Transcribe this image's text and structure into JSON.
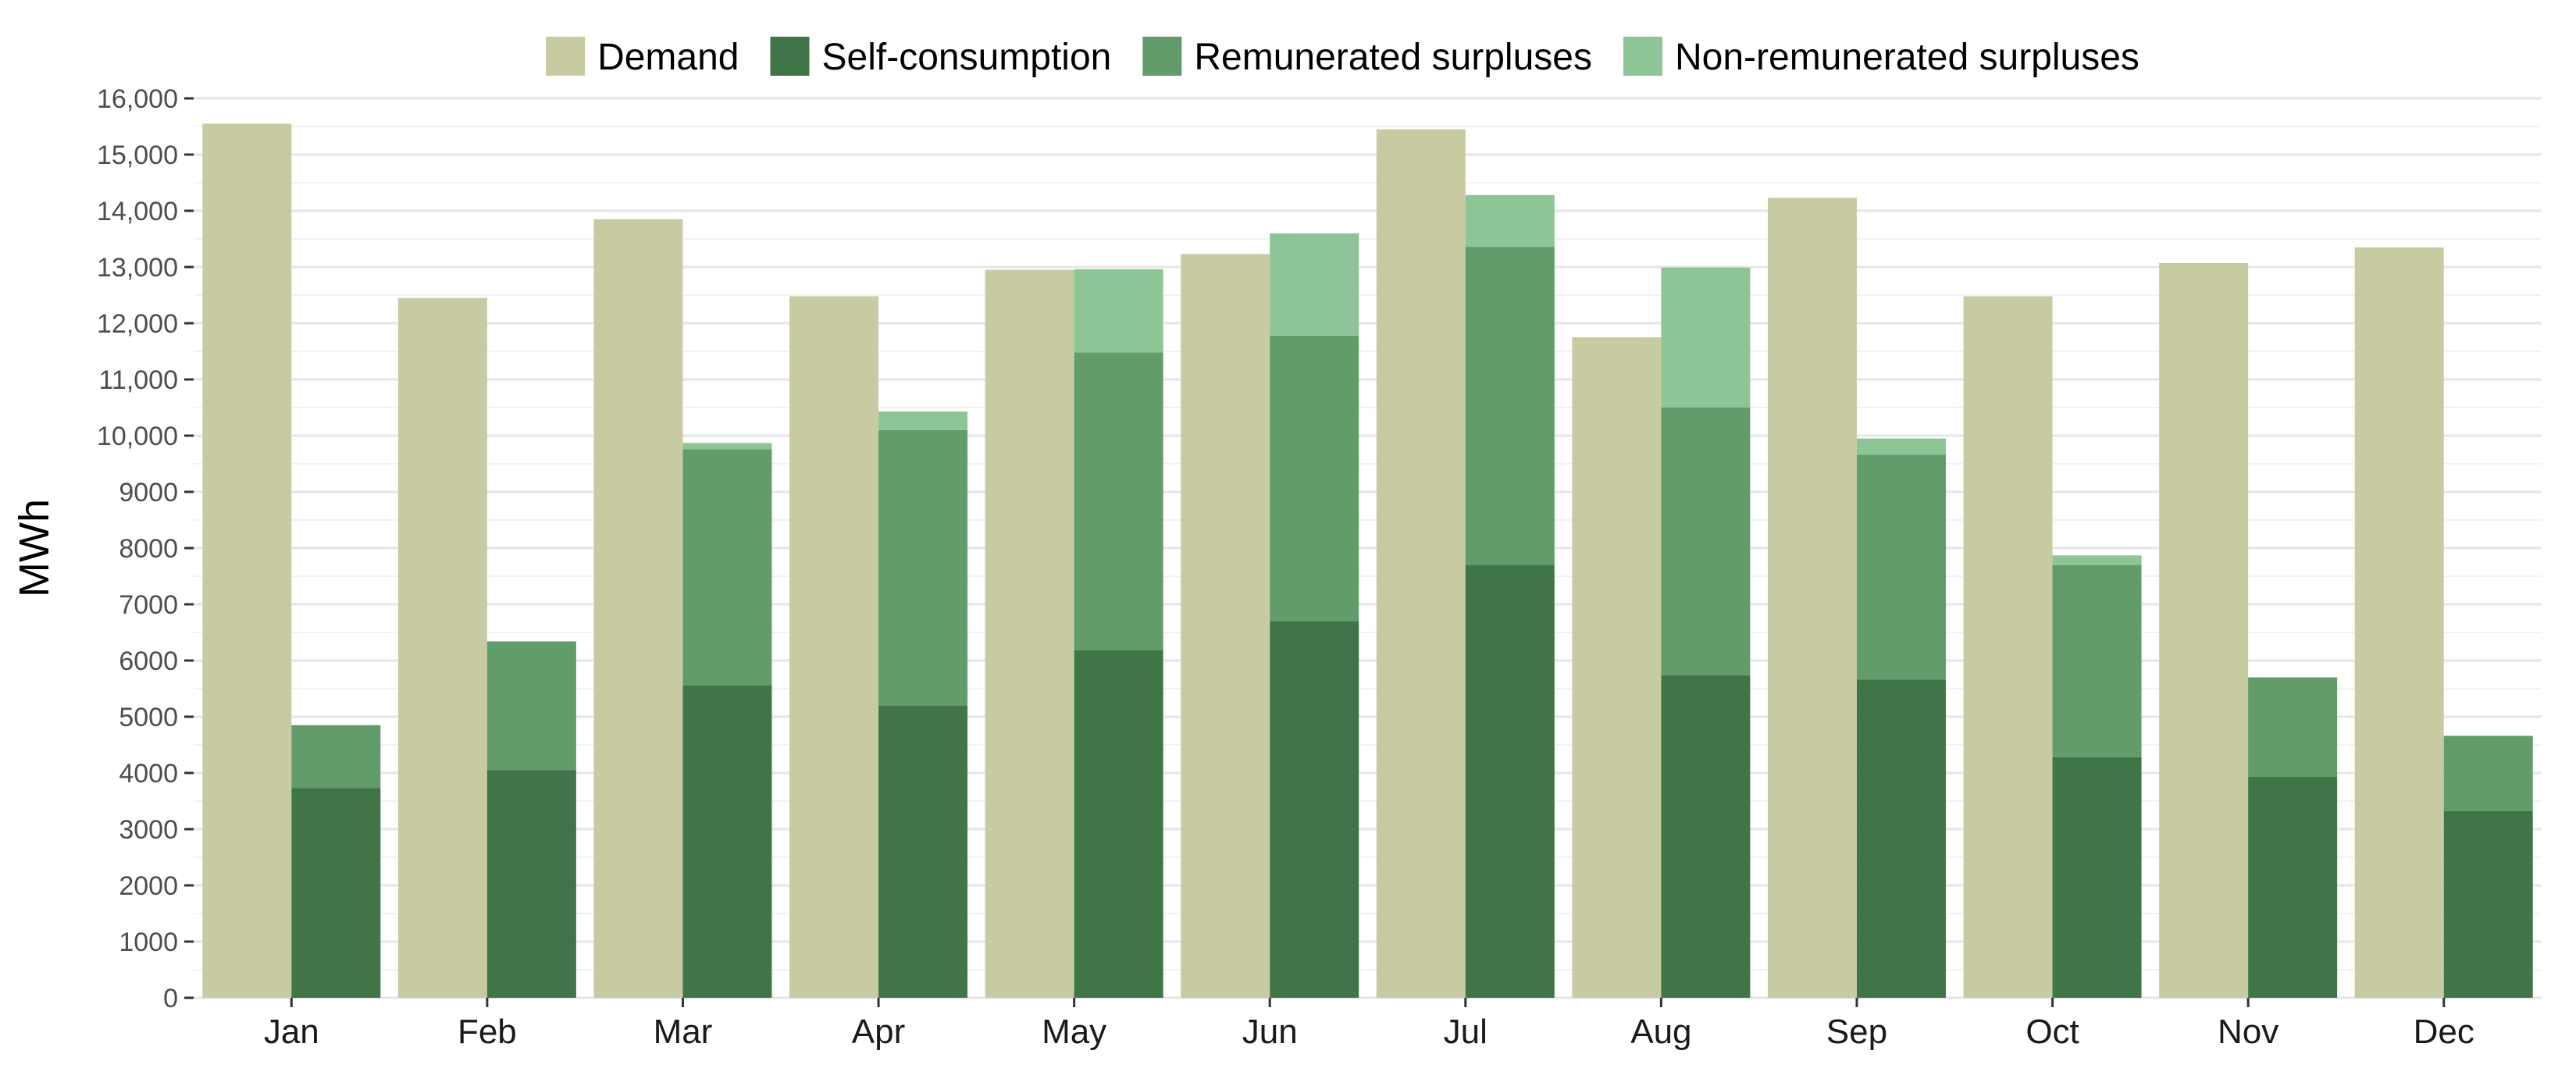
{
  "chart_data": {
    "type": "bar",
    "title": "",
    "xlabel": "",
    "ylabel": "MWh",
    "ylim": [
      0,
      16000
    ],
    "grid": true,
    "legend_position": "top",
    "y_ticks": [
      0,
      1000,
      2000,
      3000,
      4000,
      5000,
      6000,
      7000,
      8000,
      9000,
      10000,
      11000,
      12000,
      13000,
      14000,
      15000,
      16000
    ],
    "y_tick_labels": [
      "0",
      "1000",
      "2000",
      "3000",
      "4000",
      "5000",
      "6000",
      "7000",
      "8000",
      "9000",
      "10,000",
      "11,000",
      "12,000",
      "13,000",
      "14,000",
      "15,000",
      "16,000"
    ],
    "categories": [
      "Jan",
      "Feb",
      "Mar",
      "Apr",
      "May",
      "Jun",
      "Jul",
      "Aug",
      "Sep",
      "Oct",
      "Nov",
      "Dec"
    ],
    "series": [
      {
        "name": "Demand",
        "color": "#c8cba2",
        "stack": "demand",
        "values": [
          15550,
          12450,
          13850,
          12480,
          12950,
          13230,
          15450,
          11750,
          14230,
          12480,
          13070,
          13350
        ]
      },
      {
        "name": "Self-consumption",
        "color": "#3f7547",
        "stack": "generation",
        "values": [
          3730,
          4050,
          5560,
          5200,
          6180,
          6700,
          7700,
          5740,
          5660,
          4280,
          3930,
          3320
        ]
      },
      {
        "name": "Remunerated surpluses",
        "color": "#629c6a",
        "stack": "generation",
        "values": [
          1120,
          2290,
          4200,
          4900,
          5300,
          5080,
          5660,
          4760,
          4000,
          3420,
          1770,
          1340
        ]
      },
      {
        "name": "Non-remunerated surpluses",
        "color": "#8ec597",
        "stack": "generation",
        "values": [
          0,
          0,
          110,
          330,
          1480,
          1820,
          920,
          2490,
          290,
          170,
          0,
          0
        ]
      }
    ]
  }
}
